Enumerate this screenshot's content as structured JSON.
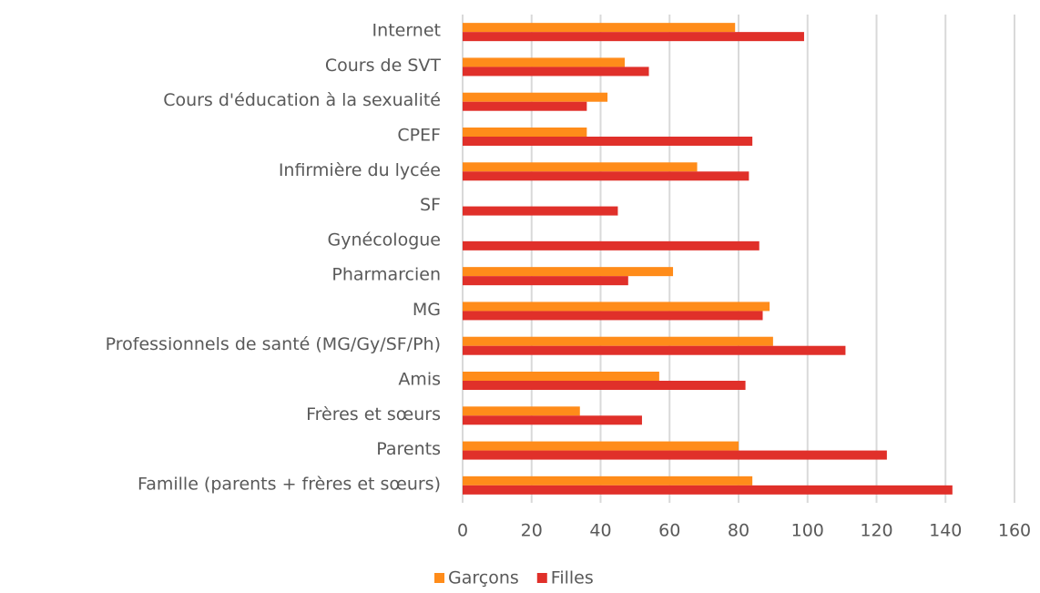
{
  "chart_data": {
    "type": "barh",
    "categories": [
      "Internet",
      "Cours de SVT",
      "Cours d'éducation à la sexualité",
      "CPEF",
      "Infirmière du lycée",
      "SF",
      "Gynécologue",
      "Pharmarcien",
      "MG",
      "Professionnels de santé (MG/Gy/SF/Ph)",
      "Amis",
      "Frères et sœurs",
      "Parents",
      "Famille (parents + frères et sœurs)"
    ],
    "series": [
      {
        "name": "Garçons",
        "color": "#ff8c1a",
        "values": [
          79,
          47,
          42,
          36,
          68,
          0,
          0,
          61,
          89,
          90,
          57,
          34,
          80,
          84
        ]
      },
      {
        "name": "Filles",
        "color": "#e0302a",
        "values": [
          99,
          54,
          36,
          84,
          83,
          45,
          86,
          48,
          87,
          111,
          82,
          52,
          123,
          142
        ]
      }
    ],
    "xlim": [
      0,
      160
    ],
    "xticks": [
      0,
      20,
      40,
      60,
      80,
      100,
      120,
      140,
      160
    ],
    "grid": true,
    "legend": "bottom"
  }
}
